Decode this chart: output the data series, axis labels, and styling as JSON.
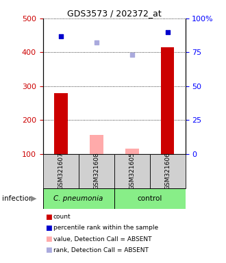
{
  "title": "GDS3573 / 202372_at",
  "samples": [
    "GSM321607",
    "GSM321608",
    "GSM321605",
    "GSM321606"
  ],
  "absent_flags": [
    false,
    true,
    true,
    false
  ],
  "ylim_left": [
    100,
    500
  ],
  "ylim_right": [
    0,
    100
  ],
  "yticks_left": [
    100,
    200,
    300,
    400,
    500
  ],
  "yticks_right": [
    0,
    25,
    50,
    75,
    100
  ],
  "red_values": [
    280,
    155,
    115,
    415
  ],
  "blue_values": [
    87,
    82,
    73,
    90
  ],
  "ylabel_left_color": "#cc0000",
  "ylabel_right_color": "#0000ff",
  "color_red_present": "#cc0000",
  "color_red_absent": "#ffaaaa",
  "color_blue_present": "#0000cc",
  "color_blue_absent": "#aaaadd",
  "group_green": "#88ee88",
  "group_gray": "#d0d0d0",
  "legend_colors": [
    "#cc0000",
    "#0000cc",
    "#ffaaaa",
    "#aaaadd"
  ],
  "legend_labels": [
    "count",
    "percentile rank within the sample",
    "value, Detection Call = ABSENT",
    "rank, Detection Call = ABSENT"
  ]
}
